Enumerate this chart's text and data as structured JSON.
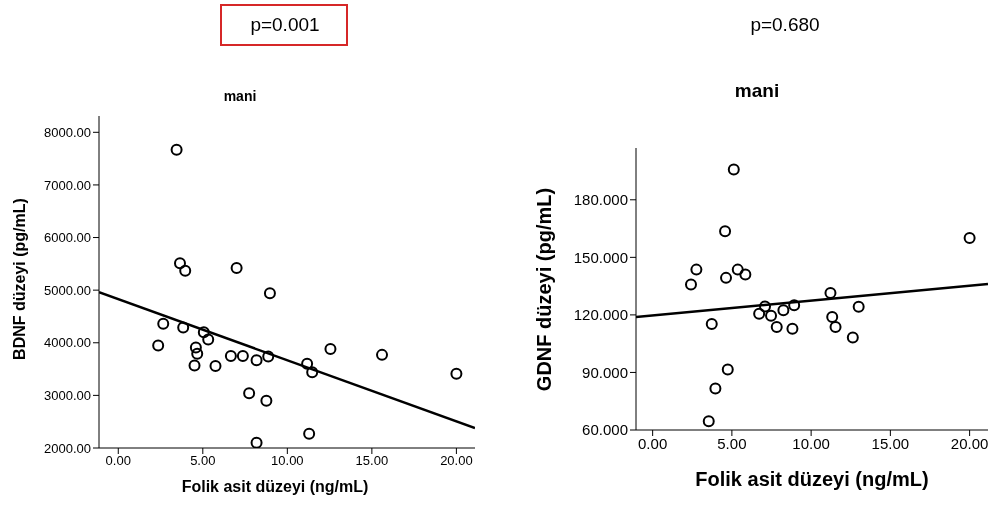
{
  "chart_data": [
    {
      "type": "scatter",
      "title": "mani",
      "xlabel": "Folik asit düzeyi (ng/mL)",
      "ylabel": "BDNF düzeyi (pg/mL)",
      "annotations": [
        "p=0.001"
      ],
      "marker": "circle",
      "grid": false,
      "xlim": [
        -1.14,
        21.1
      ],
      "ylim": [
        2000,
        8310
      ],
      "xticks": [
        {
          "value": 0,
          "label": "0.00"
        },
        {
          "value": 5,
          "label": "5.00"
        },
        {
          "value": 10,
          "label": "10.00"
        },
        {
          "value": 15,
          "label": "15.00"
        },
        {
          "value": 20,
          "label": "20.00"
        }
      ],
      "yticks": [
        {
          "value": 2000,
          "label": "2000.00"
        },
        {
          "value": 3000,
          "label": "3000.00"
        },
        {
          "value": 4000,
          "label": "4000.00"
        },
        {
          "value": 5000,
          "label": "5000.00"
        },
        {
          "value": 6000,
          "label": "6000.00"
        },
        {
          "value": 7000,
          "label": "7000.00"
        },
        {
          "value": 8000,
          "label": "8000.00"
        }
      ],
      "series": [
        {
          "color": "#000000",
          "x": [
            3.45,
            3.65,
            3.96,
            7.0,
            8.97,
            2.66,
            3.84,
            5.06,
            5.32,
            2.36,
            4.59,
            4.67,
            4.51,
            5.75,
            6.66,
            7.37,
            8.18,
            8.87,
            7.74,
            8.76,
            8.18,
            11.17,
            11.47,
            11.29,
            12.55,
            15.6,
            20.0
          ],
          "values": [
            7670,
            5510,
            5370,
            5420,
            4940,
            4360,
            4290,
            4200,
            4060,
            3950,
            3910,
            3790,
            3570,
            3560,
            3750,
            3750,
            3670,
            3740,
            3040,
            2900,
            2100,
            3600,
            3440,
            2270,
            3880,
            3770,
            3410
          ]
        },
        {
          "type": "line",
          "marker": "none",
          "color": "#000000",
          "x": [
            -1.14,
            21.1
          ],
          "values": [
            4960,
            2380
          ]
        }
      ]
    },
    {
      "type": "scatter",
      "title": "mani",
      "xlabel": "Folik asit düzeyi (ng/mL)",
      "ylabel": "GDNF düzeyi (pg/mL)",
      "annotations": [
        "p=0.680"
      ],
      "marker": "circle",
      "grid": false,
      "xlim": [
        -1.05,
        21.16
      ],
      "ylim": [
        60,
        207
      ],
      "xticks": [
        {
          "value": 0,
          "label": "0.00"
        },
        {
          "value": 5,
          "label": "5.00"
        },
        {
          "value": 10,
          "label": "10.00"
        },
        {
          "value": 15,
          "label": "15.00"
        },
        {
          "value": 20,
          "label": "20.00"
        }
      ],
      "yticks": [
        {
          "value": 60,
          "label": "60.000"
        },
        {
          "value": 90,
          "label": "90.000"
        },
        {
          "value": 120,
          "label": "120.000"
        },
        {
          "value": 150,
          "label": "150.000"
        },
        {
          "value": 180,
          "label": "180.000"
        }
      ],
      "series": [
        {
          "color": "#000000",
          "x": [
            5.12,
            4.57,
            20.0,
            2.76,
            2.42,
            4.63,
            5.37,
            5.85,
            11.22,
            7.09,
            6.72,
            7.47,
            8.25,
            8.93,
            7.83,
            8.82,
            3.73,
            11.33,
            11.54,
            13.0,
            12.63,
            4.74,
            3.96,
            3.54
          ],
          "values": [
            195.8,
            163.6,
            160.1,
            143.6,
            135.8,
            139.3,
            143.6,
            141.0,
            131.4,
            124.4,
            120.6,
            119.6,
            122.4,
            125.0,
            113.7,
            112.8,
            115.3,
            118.9,
            113.7,
            124.2,
            108.2,
            91.5,
            81.6,
            64.5
          ]
        },
        {
          "type": "line",
          "marker": "none",
          "color": "#000000",
          "x": [
            -1.05,
            21.16
          ],
          "values": [
            118.9,
            136.1
          ]
        }
      ]
    }
  ]
}
